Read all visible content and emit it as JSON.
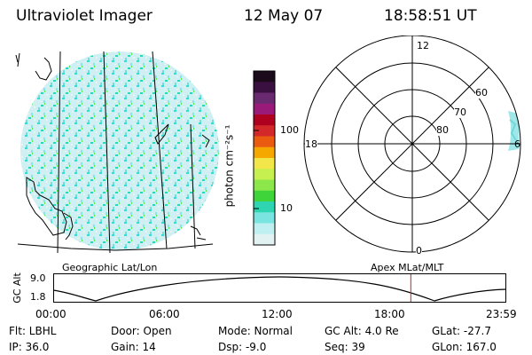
{
  "header": {
    "title": "Ultraviolet Imager",
    "date": "12 May 07",
    "time": "18:58:51 UT"
  },
  "colorbar": {
    "unit_label": "photon cm⁻²s⁻¹",
    "ticks": [
      "100",
      "10"
    ],
    "colors": [
      "#1a0a1a",
      "#3a1040",
      "#6a2a70",
      "#9a1a7a",
      "#b00020",
      "#d2282a",
      "#ea5a10",
      "#f5a800",
      "#f2e64a",
      "#c6f050",
      "#8ce84a",
      "#3fd43a",
      "#2ed5b0",
      "#7ae5e0",
      "#bfeff0",
      "#e2f2f2"
    ]
  },
  "polar": {
    "hour_labels": {
      "top": "12",
      "left": "18",
      "right": "6",
      "bottom": "0"
    },
    "lat_labels": [
      "60",
      "70",
      "80"
    ]
  },
  "altitude_plot": {
    "y_axis_label": "GC Alt",
    "y_max": "9.0",
    "y_min": "1.8",
    "left_caption": "Geographic Lat/Lon",
    "right_caption": "Apex MLat/MLT",
    "x_ticks": [
      "00:00",
      "06:00",
      "12:00",
      "18:00",
      "23:59"
    ],
    "marker_time_hours": 18.98,
    "marker_color": "#cc2222"
  },
  "status": {
    "row1": [
      "Flt: LBHL",
      "Door: Open",
      "Mode: Normal",
      "GC Alt: 4.0 Re",
      "GLat: -27.7"
    ],
    "row2": [
      "IP: 36.0",
      "Gain: 14",
      "Dsp: -9.0",
      "Seq: 39",
      "GLon: 167.0"
    ]
  }
}
